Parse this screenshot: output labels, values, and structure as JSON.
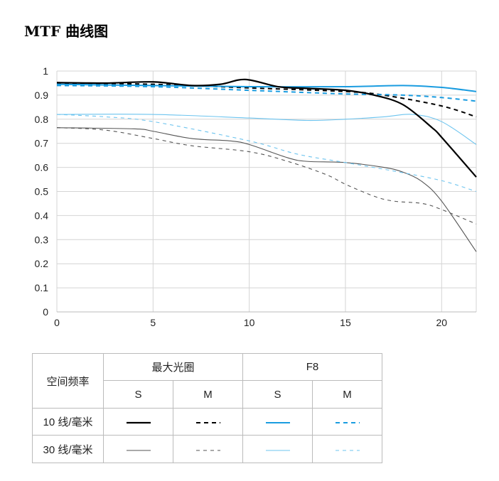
{
  "title": "MTF 曲线图",
  "chart_data": {
    "type": "line",
    "title": "MTF 曲线图",
    "xlabel": "",
    "ylabel": "",
    "xlim": [
      0,
      21.8
    ],
    "ylim": [
      0,
      1
    ],
    "xticks": [
      "0",
      "5",
      "10",
      "15",
      "20"
    ],
    "yticks": [
      "0",
      "0.1",
      "0.2",
      "0.3",
      "0.4",
      "0.5",
      "0.6",
      "0.7",
      "0.8",
      "0.9",
      "1"
    ],
    "grid": true,
    "series": [
      {
        "name": "10 线/毫米 最大光圈 S",
        "color": "#000000",
        "width": 2.2,
        "dash": "",
        "points": [
          [
            0,
            0.952
          ],
          [
            2.5,
            0.95
          ],
          [
            5,
            0.955
          ],
          [
            7,
            0.94
          ],
          [
            8.5,
            0.945
          ],
          [
            9.8,
            0.965
          ],
          [
            11.5,
            0.935
          ],
          [
            13,
            0.928
          ],
          [
            15,
            0.92
          ],
          [
            16.5,
            0.9
          ],
          [
            18,
            0.86
          ],
          [
            19.5,
            0.765
          ],
          [
            20,
            0.725
          ],
          [
            21.8,
            0.56
          ]
        ]
      },
      {
        "name": "10 线/毫米 最大光圈 M",
        "color": "#000000",
        "width": 2,
        "dash": "6,5",
        "points": [
          [
            0,
            0.95
          ],
          [
            5,
            0.945
          ],
          [
            10,
            0.93
          ],
          [
            15,
            0.915
          ],
          [
            17,
            0.9
          ],
          [
            20,
            0.855
          ],
          [
            21.8,
            0.81
          ]
        ]
      },
      {
        "name": "10 线/毫米 F8 S",
        "color": "#1a9ce0",
        "width": 2,
        "dash": "",
        "points": [
          [
            0,
            0.945
          ],
          [
            5,
            0.94
          ],
          [
            10,
            0.935
          ],
          [
            15,
            0.935
          ],
          [
            18,
            0.94
          ],
          [
            20,
            0.932
          ],
          [
            21.8,
            0.915
          ]
        ]
      },
      {
        "name": "10 线/毫米 F8 M",
        "color": "#1a9ce0",
        "width": 2,
        "dash": "6,5",
        "points": [
          [
            0,
            0.94
          ],
          [
            5,
            0.935
          ],
          [
            10,
            0.92
          ],
          [
            15,
            0.905
          ],
          [
            18,
            0.9
          ],
          [
            20,
            0.89
          ],
          [
            21.8,
            0.875
          ]
        ]
      },
      {
        "name": "30 线/毫米 最大光圈 S",
        "color": "#555555",
        "width": 1.1,
        "dash": "",
        "points": [
          [
            0,
            0.765
          ],
          [
            4,
            0.76
          ],
          [
            5,
            0.75
          ],
          [
            7,
            0.72
          ],
          [
            9,
            0.71
          ],
          [
            10,
            0.695
          ],
          [
            12,
            0.64
          ],
          [
            13,
            0.625
          ],
          [
            15,
            0.62
          ],
          [
            17,
            0.6
          ],
          [
            18,
            0.58
          ],
          [
            19,
            0.54
          ],
          [
            20,
            0.46
          ],
          [
            21.8,
            0.25
          ]
        ]
      },
      {
        "name": "30 线/毫米 最大光圈 M",
        "color": "#555555",
        "width": 1.1,
        "dash": "5,5",
        "points": [
          [
            0,
            0.765
          ],
          [
            2.5,
            0.755
          ],
          [
            5,
            0.72
          ],
          [
            7,
            0.69
          ],
          [
            10,
            0.665
          ],
          [
            12,
            0.625
          ],
          [
            14,
            0.57
          ],
          [
            15,
            0.53
          ],
          [
            16.5,
            0.48
          ],
          [
            17.5,
            0.46
          ],
          [
            19,
            0.45
          ],
          [
            20,
            0.425
          ],
          [
            21.8,
            0.365
          ]
        ]
      },
      {
        "name": "30 线/毫米 F8 S",
        "color": "#6cc4ef",
        "width": 1.1,
        "dash": "",
        "points": [
          [
            0,
            0.82
          ],
          [
            5,
            0.82
          ],
          [
            10,
            0.805
          ],
          [
            13,
            0.795
          ],
          [
            15,
            0.8
          ],
          [
            17,
            0.81
          ],
          [
            18.5,
            0.82
          ],
          [
            20,
            0.79
          ],
          [
            21.8,
            0.695
          ]
        ]
      },
      {
        "name": "30 线/毫米 F8 M",
        "color": "#6cc4ef",
        "width": 1.1,
        "dash": "5,5",
        "points": [
          [
            0,
            0.82
          ],
          [
            2.5,
            0.81
          ],
          [
            5,
            0.79
          ],
          [
            10,
            0.71
          ],
          [
            12.5,
            0.655
          ],
          [
            15,
            0.62
          ],
          [
            17.5,
            0.585
          ],
          [
            20,
            0.545
          ],
          [
            21.8,
            0.5
          ]
        ]
      }
    ]
  },
  "legend": {
    "header_freq": "空间频率",
    "group_open": "最大光圈",
    "group_f8": "F8",
    "sub": [
      "S",
      "M",
      "S",
      "M"
    ],
    "row10": "10 线/毫米",
    "row30": "30 线/毫米"
  }
}
